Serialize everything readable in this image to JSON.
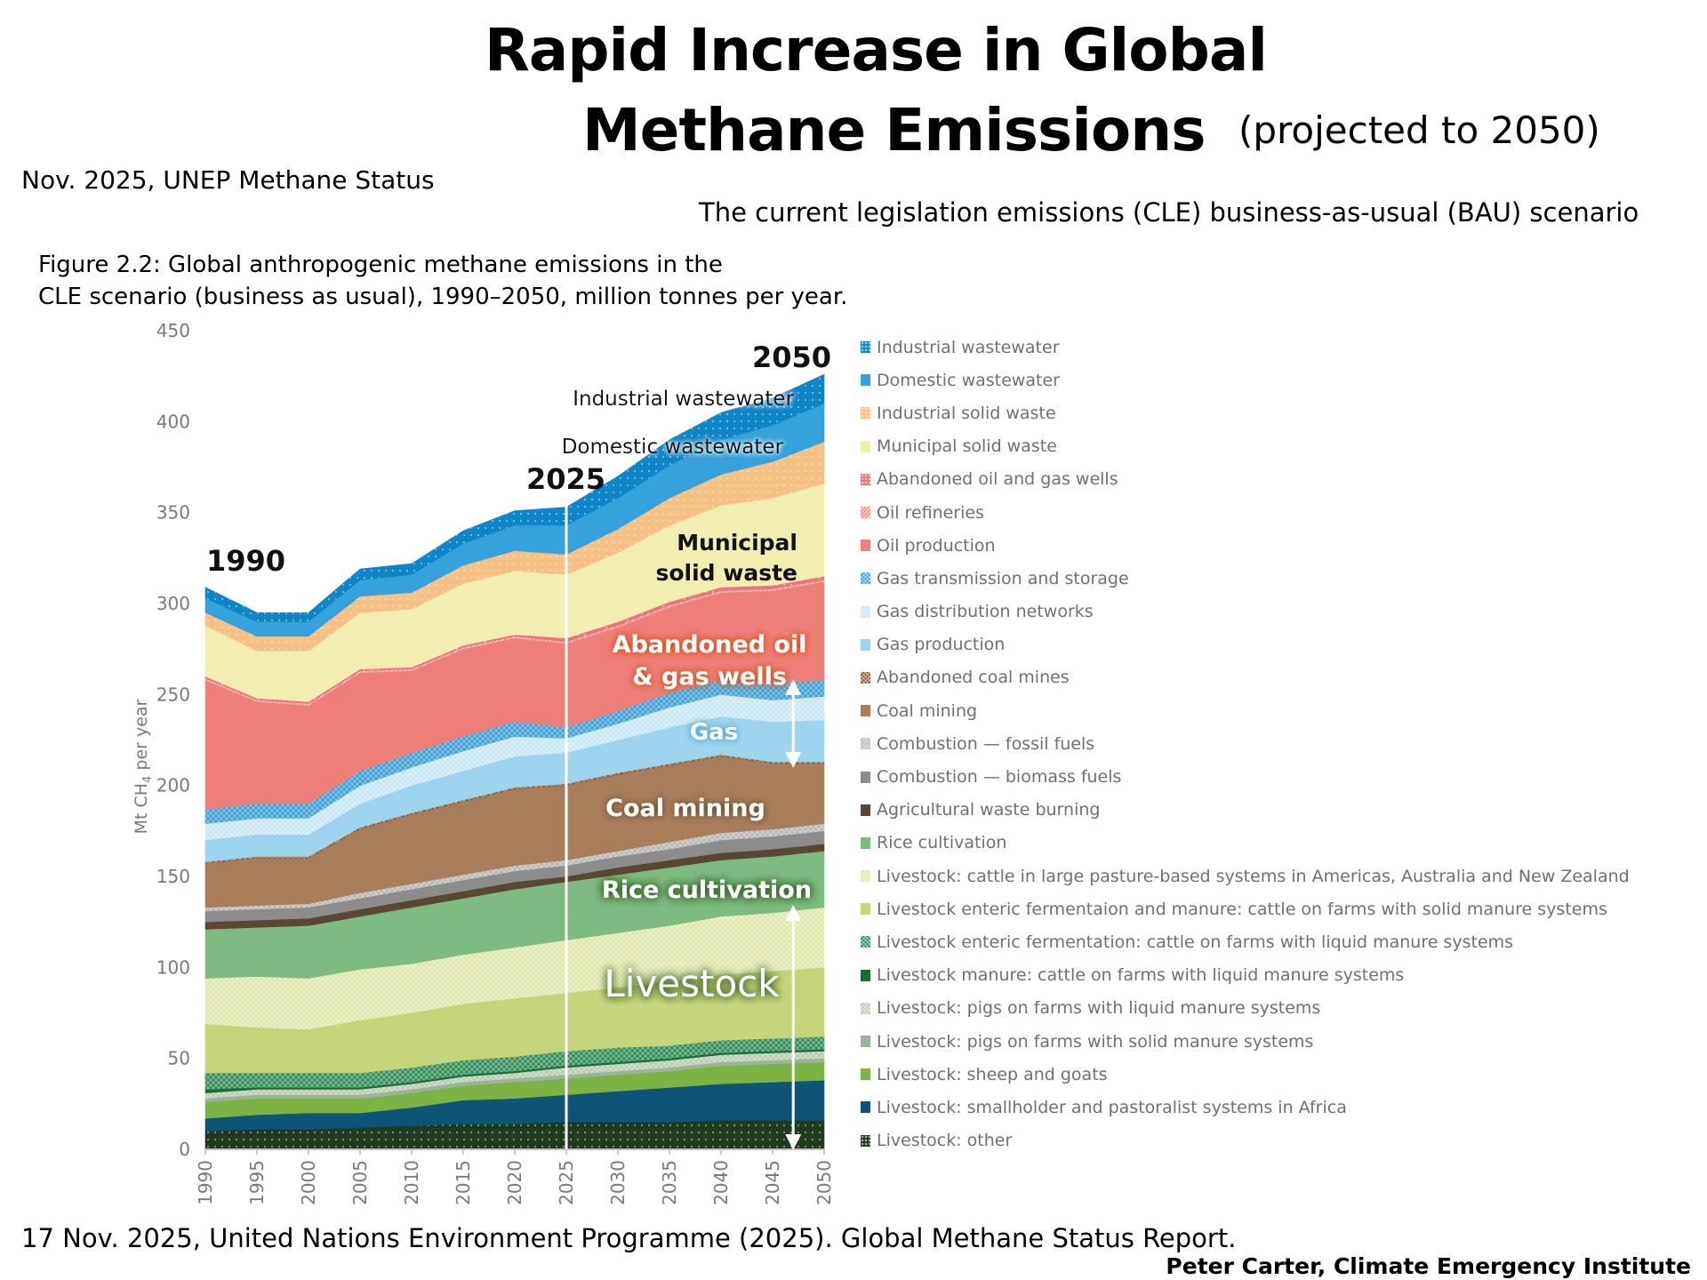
{
  "header": {
    "title_line1": "Rapid Increase in Global",
    "title_line2": "Methane Emissions",
    "title_note": "(projected to 2050)",
    "source_top": "Nov. 2025, UNEP Methane Status",
    "scenario": "The current legislation emissions (CLE) business-as-usual (BAU) scenario",
    "figure_caption_line1": "Figure 2.2: Global anthropogenic methane emissions in the",
    "figure_caption_line2": "CLE scenario (business as usual), 1990–2050, million tonnes per year."
  },
  "footer": {
    "source_bottom": "17 Nov. 2025, United Nations Environment Programme (2025). Global Methane Status Report.",
    "credit": "Peter Carter, Climate Emergency Institute"
  },
  "annotations": {
    "year_1990": "1990",
    "year_2025": "2025",
    "year_2050": "2050",
    "industrial_wastewater": "Industrial wastewater",
    "domestic_wastewater": "Domestic wastewater",
    "municipal_line1": "Municipal",
    "municipal_line2": "solid waste",
    "abandoned_line1": "Abandoned oil",
    "abandoned_line2": "& gas wells",
    "gas": "Gas",
    "coal_mining": "Coal mining",
    "rice_cultivation": "Rice cultivation",
    "livestock": "Livestock"
  },
  "chart_data": {
    "type": "area",
    "stacked": true,
    "title": "Global anthropogenic methane emissions in the CLE scenario (business as usual), 1990–2050",
    "xlabel": "",
    "ylabel": "Mt CH4 per year",
    "ylabel_main": "Mt CH",
    "ylabel_sub": "4",
    "ylabel_rest": " per year",
    "ylim": [
      0,
      450
    ],
    "yticks": [
      0,
      50,
      100,
      150,
      200,
      250,
      300,
      350,
      400,
      450
    ],
    "x": [
      1990,
      1995,
      2000,
      2005,
      2010,
      2015,
      2020,
      2025,
      2030,
      2035,
      2040,
      2045,
      2050
    ],
    "xtick_labels": [
      "1990",
      "1995",
      "2000",
      "2005",
      "2010",
      "2015",
      "2020",
      "2025",
      "2030",
      "2035",
      "2040",
      "2045",
      "2050"
    ],
    "grid": false,
    "legend_position": "right",
    "marker_line_year": 2025,
    "totals": [
      310,
      299,
      299,
      318,
      324,
      338,
      352,
      357,
      368,
      386,
      401,
      410,
      426
    ],
    "series": [
      {
        "name": "Livestock: other",
        "color": "#1f3a1f",
        "values": [
          10,
          11,
          11,
          12,
          13,
          14,
          14,
          15,
          15,
          15,
          16,
          16,
          16
        ]
      },
      {
        "name": "Livestock: smallholder and pastoralist systems in Africa",
        "color": "#0e5478",
        "values": [
          7,
          8,
          9,
          8,
          10,
          13,
          14,
          15,
          17,
          19,
          20,
          21,
          22
        ]
      },
      {
        "name": "Livestock: sheep and goats",
        "color": "#7cb342",
        "values": [
          9,
          9,
          8,
          8,
          8,
          8,
          9,
          9,
          9,
          9,
          10,
          10,
          10
        ]
      },
      {
        "name": "Livestock: pigs on farms with solid manure systems",
        "color": "#9bb39b",
        "values": [
          2,
          2,
          2,
          2,
          2,
          2,
          2,
          2,
          2,
          2,
          2,
          2,
          2
        ]
      },
      {
        "name": "Livestock: pigs on farms with liquid manure systems",
        "color": "#b8c9b0",
        "values": [
          3,
          3,
          3,
          3,
          3,
          3,
          3,
          4,
          4,
          4,
          4,
          4,
          4
        ]
      },
      {
        "name": "Livestock manure: cattle on farms with liquid manure systems",
        "color": "#1b6b34",
        "values": [
          2,
          1,
          1,
          1,
          1,
          1,
          1,
          1,
          1,
          1,
          1,
          1,
          1
        ]
      },
      {
        "name": "Livestock enteric fermentation: cattle on farms with liquid manure systems",
        "color": "#2e8b57",
        "values": [
          9,
          8,
          8,
          8,
          8,
          8,
          8,
          8,
          8,
          7,
          7,
          7,
          7
        ]
      },
      {
        "name": "Livestock enteric fermentaion and manure: cattle on farms with solid manure systems",
        "color": "#c6d57a",
        "values": [
          27,
          25,
          24,
          29,
          30,
          31,
          32,
          32,
          33,
          35,
          36,
          37,
          38
        ]
      },
      {
        "name": "Livestock: cattle in large pasture-based systems in Americas, Australia and New Zealand",
        "color": "#dfe6a8",
        "values": [
          25,
          28,
          28,
          28,
          27,
          27,
          28,
          29,
          30,
          31,
          32,
          32,
          33
        ]
      },
      {
        "name": "Rice cultivation",
        "color": "#7dbb82",
        "values": [
          27,
          27,
          29,
          29,
          31,
          31,
          32,
          32,
          32,
          32,
          31,
          31,
          31
        ]
      },
      {
        "name": "Agricultural waste burning",
        "color": "#5a4632",
        "values": [
          4,
          4,
          4,
          4,
          4,
          4,
          4,
          3,
          4,
          4,
          4,
          4,
          4
        ]
      },
      {
        "name": "Combustion — biomass fuels",
        "color": "#8c8c8c",
        "values": [
          6,
          6,
          6,
          6,
          6,
          6,
          6,
          6,
          6,
          6,
          7,
          7,
          7
        ]
      },
      {
        "name": "Combustion — fossil fuels",
        "color": "#b5b5b5",
        "values": [
          2,
          2,
          2,
          3,
          3,
          3,
          3,
          3,
          3,
          4,
          4,
          4,
          4
        ]
      },
      {
        "name": "Coal mining",
        "color": "#a87d5a",
        "values": [
          24,
          26,
          25,
          35,
          38,
          40,
          42,
          41,
          42,
          42,
          42,
          36,
          33
        ]
      },
      {
        "name": "Abandoned coal mines",
        "color": "#8a5a35",
        "values": [
          1,
          1,
          1,
          1,
          1,
          1,
          1,
          1,
          1,
          1,
          1,
          1,
          1
        ]
      },
      {
        "name": "Gas production",
        "color": "#9dd4ee",
        "values": [
          12,
          12,
          12,
          13,
          15,
          16,
          17,
          17,
          18,
          20,
          21,
          22,
          23
        ]
      },
      {
        "name": "Gas distribution networks",
        "color": "#c5e6f4",
        "values": [
          9,
          9,
          9,
          10,
          10,
          11,
          11,
          8,
          9,
          11,
          12,
          12,
          13
        ]
      },
      {
        "name": "Gas transmission and storage",
        "color": "#3aa0d6",
        "values": [
          8,
          8,
          8,
          8,
          8,
          8,
          8,
          6,
          7,
          8,
          8,
          9,
          9
        ]
      },
      {
        "name": "Oil production",
        "color": "#ef8079",
        "values": [
          71,
          56,
          54,
          54,
          45,
          48,
          46,
          46,
          46,
          47,
          48,
          51,
          54
        ]
      },
      {
        "name": "Oil refineries",
        "color": "#f39a94",
        "values": [
          1,
          1,
          1,
          1,
          1,
          1,
          1,
          1,
          1,
          1,
          1,
          1,
          1
        ]
      },
      {
        "name": "Abandoned oil and gas wells",
        "color": "#e8767a",
        "values": [
          1,
          1,
          1,
          1,
          1,
          1,
          1,
          2,
          2,
          2,
          2,
          2,
          2
        ]
      },
      {
        "name": "Municipal solid waste",
        "color": "#f1eeb0",
        "values": [
          28,
          26,
          28,
          31,
          32,
          34,
          35,
          35,
          38,
          42,
          45,
          48,
          51
        ]
      },
      {
        "name": "Industrial solid waste",
        "color": "#f7c184",
        "values": [
          7,
          8,
          8,
          9,
          9,
          10,
          11,
          11,
          13,
          15,
          17,
          20,
          23
        ]
      },
      {
        "name": "Domestic wastewater",
        "color": "#35a2dc",
        "values": [
          8,
          8,
          8,
          9,
          10,
          12,
          14,
          16,
          17,
          18,
          19,
          20,
          21
        ]
      },
      {
        "name": "Industrial wastewater",
        "color": "#0f86c8",
        "values": [
          6,
          5,
          5,
          6,
          6,
          7,
          8,
          10,
          12,
          14,
          15,
          15,
          16
        ]
      }
    ],
    "legend": [
      {
        "label": "Industrial wastewater",
        "color": "#0f86c8",
        "pattern": "dots"
      },
      {
        "label": "Domestic wastewater",
        "color": "#35a2dc",
        "pattern": "solid"
      },
      {
        "label": "Industrial solid waste",
        "color": "#f7c184",
        "pattern": "dots"
      },
      {
        "label": "Municipal solid waste",
        "color": "#f1eeb0",
        "pattern": "solid"
      },
      {
        "label": "Abandoned oil and gas wells",
        "color": "#e8767a",
        "pattern": "dots"
      },
      {
        "label": "Oil refineries",
        "color": "#f39a94",
        "pattern": "hatch"
      },
      {
        "label": "Oil production",
        "color": "#ef8079",
        "pattern": "solid"
      },
      {
        "label": "Gas transmission and storage",
        "color": "#3aa0d6",
        "pattern": "cross"
      },
      {
        "label": "Gas distribution networks",
        "color": "#c5e6f4",
        "pattern": "cross"
      },
      {
        "label": "Gas production",
        "color": "#9dd4ee",
        "pattern": "solid"
      },
      {
        "label": "Abandoned coal mines",
        "color": "#8a5a35",
        "pattern": "cross"
      },
      {
        "label": "Coal mining",
        "color": "#a87d5a",
        "pattern": "solid"
      },
      {
        "label": "Combustion — fossil fuels",
        "color": "#b5b5b5",
        "pattern": "cross"
      },
      {
        "label": "Combustion — biomass fuels",
        "color": "#8c8c8c",
        "pattern": "solid"
      },
      {
        "label": "Agricultural waste burning",
        "color": "#5a4632",
        "pattern": "solid"
      },
      {
        "label": "Rice cultivation",
        "color": "#7dbb82",
        "pattern": "solid"
      },
      {
        "label": "Livestock: cattle in large pasture-based systems in Americas, Australia and New Zealand",
        "color": "#dfe6a8",
        "pattern": "cross"
      },
      {
        "label": "Livestock enteric fermentaion and manure: cattle on farms with solid manure systems",
        "color": "#c6d57a",
        "pattern": "solid"
      },
      {
        "label": "Livestock enteric fermentation: cattle on farms with liquid manure systems",
        "color": "#2e8b57",
        "pattern": "cross"
      },
      {
        "label": "Livestock manure: cattle on farms with liquid manure systems",
        "color": "#1b6b34",
        "pattern": "solid"
      },
      {
        "label": "Livestock: pigs on farms with liquid manure systems",
        "color": "#b8c9b0",
        "pattern": "cross"
      },
      {
        "label": "Livestock: pigs on farms with solid manure systems",
        "color": "#9bb39b",
        "pattern": "solid"
      },
      {
        "label": "Livestock: sheep and goats",
        "color": "#7cb342",
        "pattern": "solid"
      },
      {
        "label": "Livestock: smallholder and pastoralist systems in Africa",
        "color": "#0e5478",
        "pattern": "solid"
      },
      {
        "label": "Livestock: other",
        "color": "#1f3a1f",
        "pattern": "dots"
      }
    ]
  }
}
